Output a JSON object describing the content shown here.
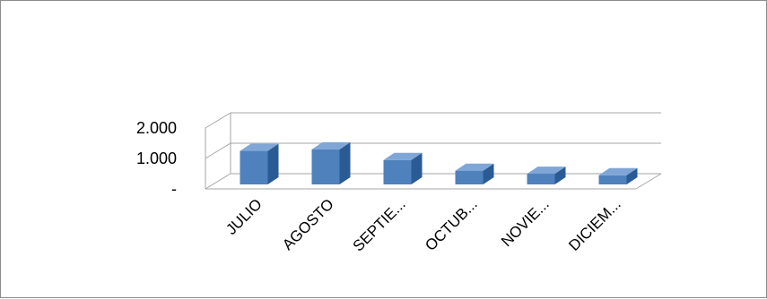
{
  "chart_data": {
    "type": "bar",
    "categories": [
      "JULIO",
      "AGOSTO",
      "SEPTIE...",
      "OCTUB...",
      "NOVIE...",
      "DICIEM..."
    ],
    "values": [
      1100,
      1150,
      800,
      450,
      350,
      300
    ],
    "ylim": [
      0,
      2000
    ],
    "y_ticks": [
      {
        "value": 2000,
        "label": "2.000"
      },
      {
        "value": 1000,
        "label": "1.000"
      },
      {
        "value": 0,
        "label": "-"
      }
    ],
    "grid": true,
    "colors": {
      "front": "#4f81bd",
      "side": "#2b5b94",
      "top": "#7fa6d6",
      "grid": "#a6a6a6"
    }
  }
}
